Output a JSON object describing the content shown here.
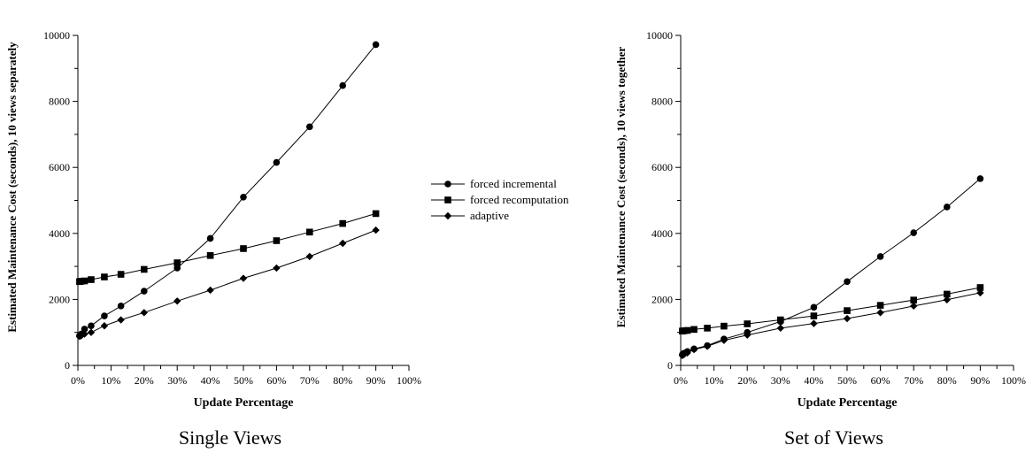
{
  "chart_data": [
    {
      "type": "line",
      "caption": "Single Views",
      "xlabel": "Update Percentage",
      "ylabel": "Estimated Maintenance Cost (seconds), 10 views separately",
      "xlim": [
        0,
        100
      ],
      "ylim": [
        0,
        10000
      ],
      "xticks": [
        "0%",
        "10%",
        "20%",
        "30%",
        "40%",
        "50%",
        "60%",
        "70%",
        "80%",
        "90%",
        "100%"
      ],
      "yticks": [
        "0",
        "2000",
        "4000",
        "6000",
        "8000",
        "10000"
      ],
      "series": [
        {
          "name": "forced incremental",
          "marker": "circle",
          "x": [
            0.5,
            1,
            2,
            4,
            8,
            13,
            20,
            30,
            40,
            50,
            60,
            70,
            80,
            90
          ],
          "y": [
            900,
            950,
            1100,
            1200,
            1500,
            1800,
            2250,
            2950,
            3850,
            5100,
            6150,
            7230,
            8480,
            9720
          ]
        },
        {
          "name": "forced recomputation",
          "marker": "square",
          "x": [
            0.5,
            1,
            2,
            4,
            8,
            13,
            20,
            30,
            40,
            50,
            60,
            70,
            80,
            90
          ],
          "y": [
            2540,
            2550,
            2560,
            2600,
            2680,
            2760,
            2910,
            3110,
            3330,
            3540,
            3780,
            4040,
            4300,
            4600
          ]
        },
        {
          "name": "adaptive",
          "marker": "diamond",
          "x": [
            0.5,
            1,
            2,
            4,
            8,
            13,
            20,
            30,
            40,
            50,
            60,
            70,
            80,
            90
          ],
          "y": [
            880,
            900,
            950,
            1000,
            1200,
            1380,
            1600,
            1950,
            2280,
            2640,
            2950,
            3300,
            3700,
            4100
          ]
        }
      ]
    },
    {
      "type": "line",
      "caption": "Set of Views",
      "xlabel": "Update Percentage",
      "ylabel": "Estimated Maintenance Cost (seconds), 10 views together",
      "xlim": [
        0,
        100
      ],
      "ylim": [
        0,
        10000
      ],
      "xticks": [
        "0%",
        "10%",
        "20%",
        "30%",
        "40%",
        "50%",
        "60%",
        "70%",
        "80%",
        "90%",
        "100%"
      ],
      "yticks": [
        "0",
        "2000",
        "4000",
        "6000",
        "8000",
        "10000"
      ],
      "series": [
        {
          "name": "forced incremental",
          "marker": "circle",
          "x": [
            0.5,
            1,
            2,
            4,
            8,
            13,
            20,
            30,
            40,
            50,
            60,
            70,
            80,
            90
          ],
          "y": [
            330,
            370,
            420,
            500,
            600,
            800,
            1000,
            1330,
            1760,
            2540,
            3300,
            4020,
            4800,
            5660
          ]
        },
        {
          "name": "forced recomputation",
          "marker": "square",
          "x": [
            0.5,
            1,
            2,
            4,
            8,
            13,
            20,
            30,
            40,
            50,
            60,
            70,
            80,
            90
          ],
          "y": [
            1040,
            1050,
            1060,
            1090,
            1130,
            1190,
            1260,
            1380,
            1500,
            1660,
            1820,
            1980,
            2160,
            2360
          ]
        },
        {
          "name": "adaptive",
          "marker": "diamond",
          "x": [
            0.5,
            1,
            2,
            4,
            8,
            13,
            20,
            30,
            40,
            50,
            60,
            70,
            80,
            90
          ],
          "y": [
            300,
            330,
            380,
            480,
            580,
            760,
            920,
            1130,
            1270,
            1420,
            1600,
            1800,
            1990,
            2200
          ]
        }
      ]
    }
  ],
  "legend": [
    {
      "label": "forced incremental",
      "marker": "circle"
    },
    {
      "label": "forced recomputation",
      "marker": "square"
    },
    {
      "label": "adaptive",
      "marker": "diamond"
    }
  ]
}
